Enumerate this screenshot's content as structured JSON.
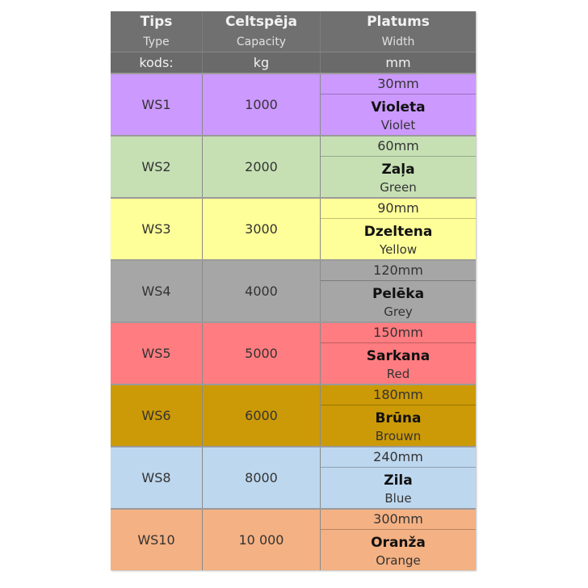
{
  "header": {
    "columns": [
      {
        "title": "Tips",
        "subtitle": "Type",
        "unit": "kods:"
      },
      {
        "title": "Celtspēja",
        "subtitle": "Capacity",
        "unit": "kg"
      },
      {
        "title": "Platums",
        "subtitle": "Width",
        "unit": "mm"
      }
    ],
    "color": "#707070"
  },
  "rows": [
    {
      "type": "WS1",
      "capacity": "1000",
      "width": "30mm",
      "color_lv": "Violeta",
      "color_en": "Violet",
      "bg": "#cc99ff"
    },
    {
      "type": "WS2",
      "capacity": "2000",
      "width": "60mm",
      "color_lv": "Zaļa",
      "color_en": "Green",
      "bg": "#c6e0b4"
    },
    {
      "type": "WS3",
      "capacity": "3000",
      "width": "90mm",
      "color_lv": "Dzeltena",
      "color_en": "Yellow",
      "bg": "#ffff99"
    },
    {
      "type": "WS4",
      "capacity": "4000",
      "width": "120mm",
      "color_lv": "Pelēka",
      "color_en": "Grey",
      "bg": "#a6a6a6"
    },
    {
      "type": "WS5",
      "capacity": "5000",
      "width": "150mm",
      "color_lv": "Sarkana",
      "color_en": "Red",
      "bg": "#ff7c80"
    },
    {
      "type": "WS6",
      "capacity": "6000",
      "width": "180mm",
      "color_lv": "Brūna",
      "color_en": "Brouwn",
      "bg": "#cc9a06"
    },
    {
      "type": "WS8",
      "capacity": "8000",
      "width": "240mm",
      "color_lv": "Zila",
      "color_en": "Blue",
      "bg": "#bdd7ee"
    },
    {
      "type": "WS10",
      "capacity": "10 000",
      "width": "300mm",
      "color_lv": "Oranža",
      "color_en": "Orange",
      "bg": "#f4b183"
    }
  ]
}
